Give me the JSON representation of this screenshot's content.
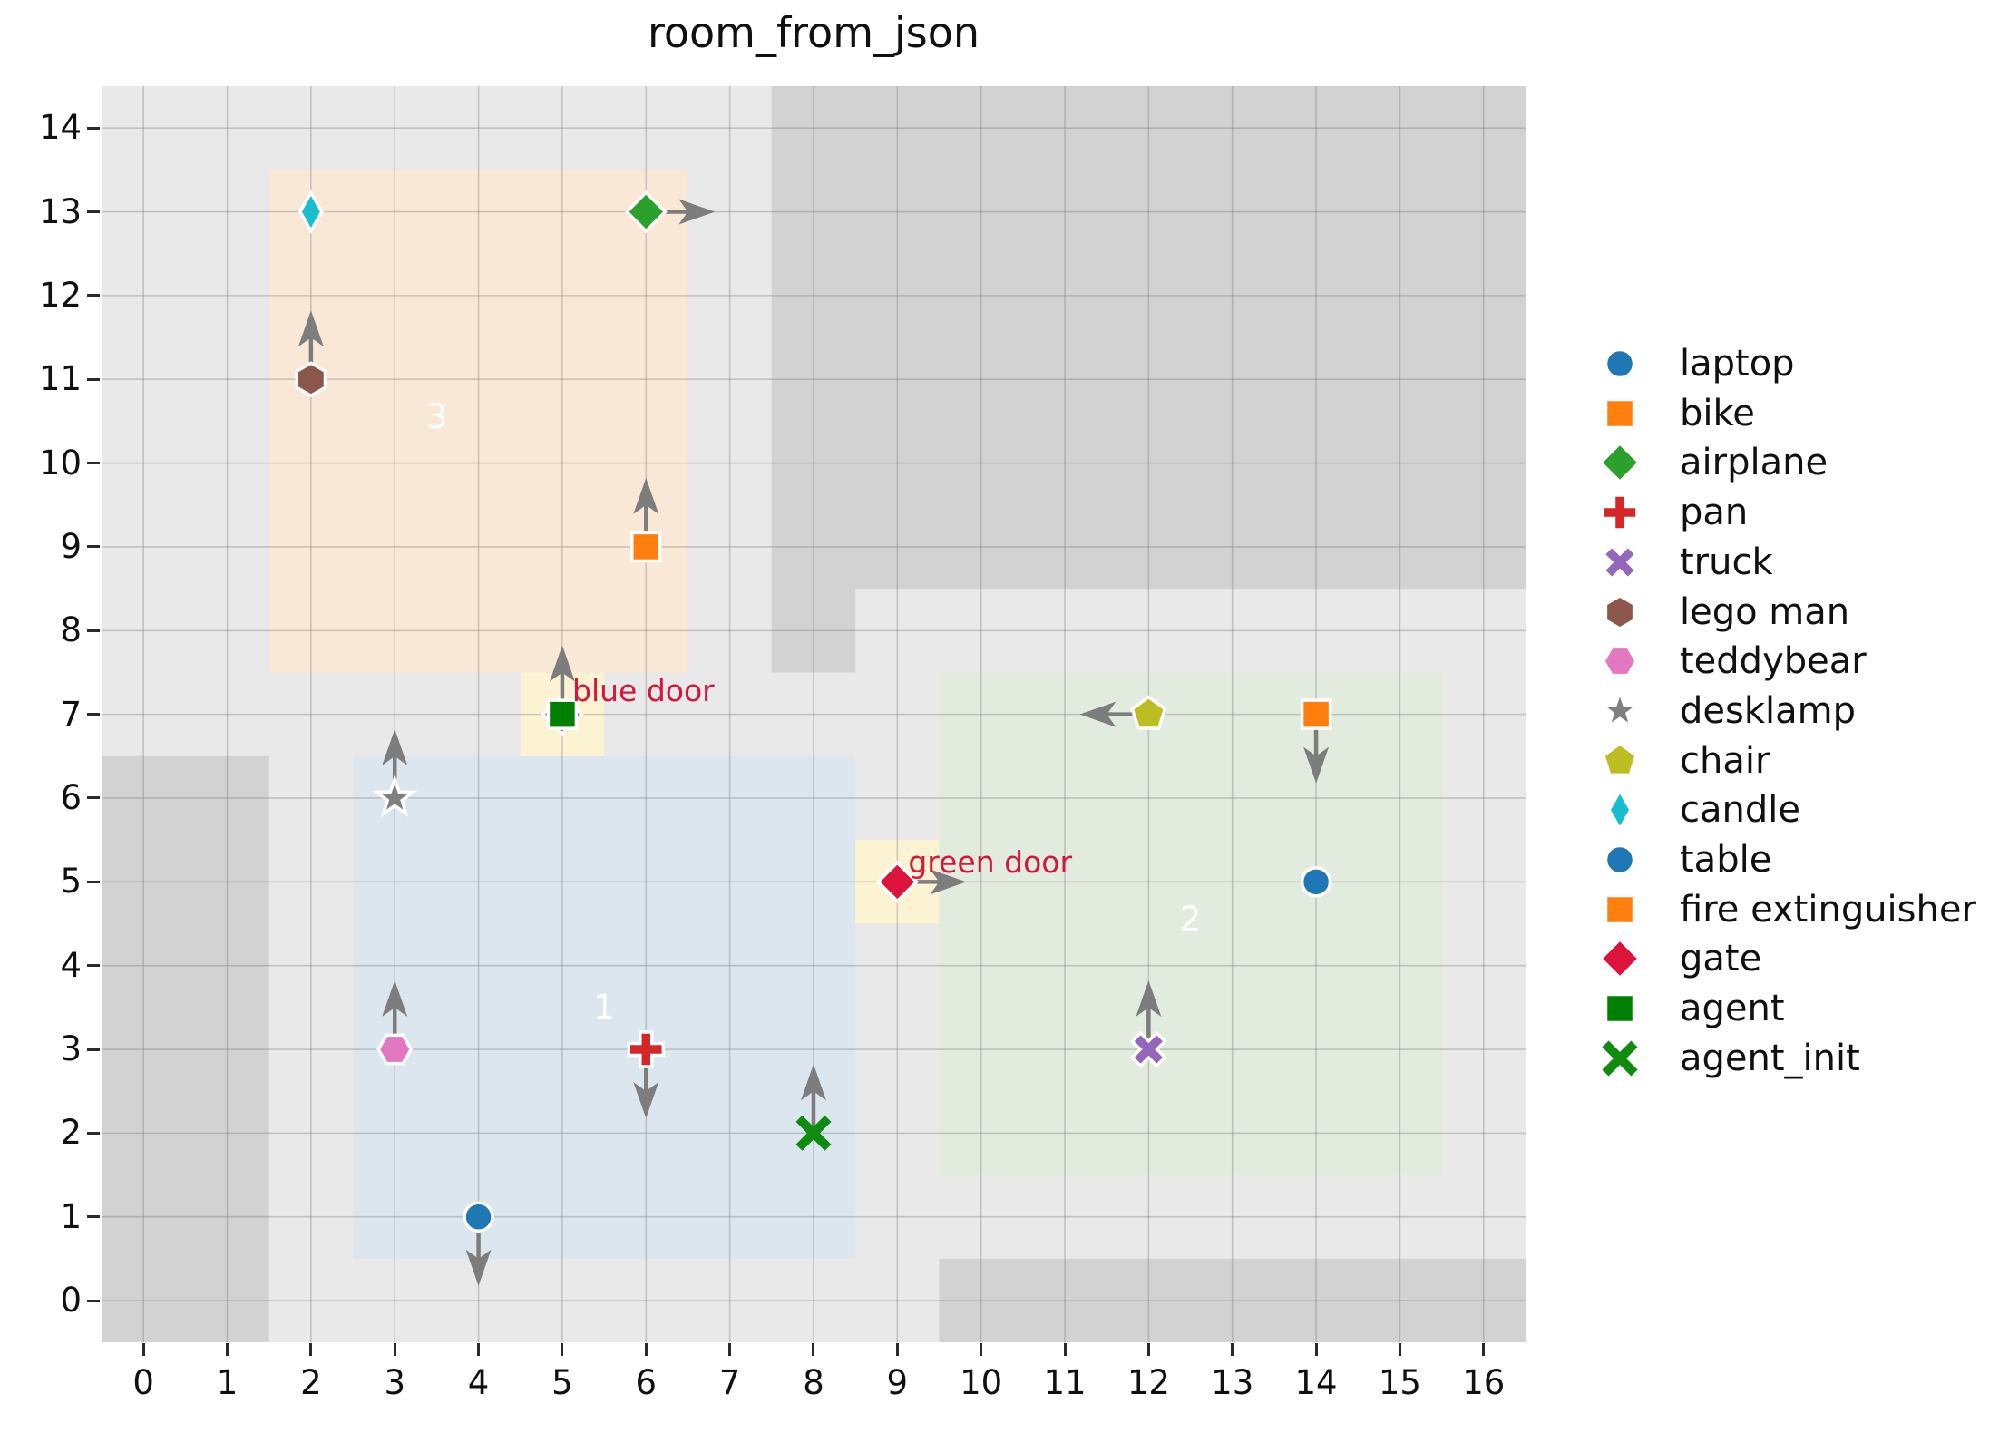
{
  "title": "room_from_json",
  "colors": {
    "plot_bg": "#e9e9e9",
    "wall": "#d2d2d2",
    "grid": "rgba(120,120,120,0.35)",
    "door_fill": "#fcf3d3",
    "door_text": "#d5173e",
    "room_label_text": "#ffffff",
    "arrow": "#7d7d7d",
    "tick_text": "#101010",
    "title_text": "#101010"
  },
  "chart_data": {
    "type": "scatter",
    "title": "room_from_json",
    "xlabel": "",
    "ylabel": "",
    "xlim": [
      -0.5,
      16.5
    ],
    "ylim": [
      -0.5,
      14.5
    ],
    "x_ticks": [
      0,
      1,
      2,
      3,
      4,
      5,
      6,
      7,
      8,
      9,
      10,
      11,
      12,
      13,
      14,
      15,
      16
    ],
    "y_ticks": [
      0,
      1,
      2,
      3,
      4,
      5,
      6,
      7,
      8,
      9,
      10,
      11,
      12,
      13,
      14
    ],
    "grid": true,
    "legend_position": "right-outside",
    "walls": [
      {
        "name": "wall-left",
        "x0": -0.5,
        "y0": -0.5,
        "x1": 1.5,
        "y1": 6.5
      },
      {
        "name": "wall-top-right",
        "x0": 7.5,
        "y0": 8.5,
        "x1": 16.5,
        "y1": 14.5
      },
      {
        "name": "wall-top-right-tab",
        "x0": 7.5,
        "y0": 7.5,
        "x1": 8.5,
        "y1": 8.5
      },
      {
        "name": "wall-bottom-right",
        "x0": 9.5,
        "y0": -0.5,
        "x1": 16.5,
        "y1": 0.5
      }
    ],
    "rooms": [
      {
        "label": "1",
        "fill": "#dce6ef",
        "x0": 2.5,
        "y0": 0.5,
        "x1": 8.5,
        "y1": 6.5,
        "label_x": 5.5,
        "label_y": 3.5
      },
      {
        "label": "2",
        "fill": "#e2ecde",
        "x0": 9.5,
        "y0": 1.5,
        "x1": 15.5,
        "y1": 7.5,
        "label_x": 12.5,
        "label_y": 4.55
      },
      {
        "label": "3",
        "fill": "#fae8d6",
        "x0": 1.5,
        "y0": 7.5,
        "x1": 6.5,
        "y1": 13.5,
        "label_x": 3.5,
        "label_y": 10.55
      }
    ],
    "doors": [
      {
        "label": "blue door",
        "cell_x0": 4.5,
        "cell_y0": 6.5,
        "cell_x1": 5.5,
        "cell_y1": 7.5,
        "label_x": 5.12,
        "label_y": 7.28
      },
      {
        "label": "green door",
        "cell_x0": 8.5,
        "cell_y0": 4.5,
        "cell_x1": 9.5,
        "cell_y1": 5.5,
        "label_x": 9.13,
        "label_y": 5.23
      }
    ],
    "objects": [
      {
        "name": "candle",
        "x": 2,
        "y": 13,
        "marker": "thin_diamond",
        "color": "#17becf",
        "arrow": null
      },
      {
        "name": "airplane",
        "x": 6,
        "y": 13,
        "marker": "diamond",
        "color": "#2ca02c",
        "arrow": "right"
      },
      {
        "name": "lego man",
        "x": 2,
        "y": 11,
        "marker": "hexagon_v",
        "color": "#8c564b",
        "arrow": "up"
      },
      {
        "name": "bike",
        "x": 6,
        "y": 9,
        "marker": "square",
        "color": "#ff7f0e",
        "arrow": "up"
      },
      {
        "name": "gate-blue-door",
        "x": 5,
        "y": 7,
        "marker": "diamond",
        "color": "#dc143c",
        "arrow": null
      },
      {
        "name": "agent",
        "x": 5,
        "y": 7,
        "marker": "square",
        "color": "#008000",
        "arrow": "up"
      },
      {
        "name": "chair",
        "x": 12,
        "y": 7,
        "marker": "pentagon",
        "color": "#bcbd22",
        "arrow": "left"
      },
      {
        "name": "fire extinguisher",
        "x": 14,
        "y": 7,
        "marker": "square",
        "color": "#ff7f0e",
        "arrow": "down"
      },
      {
        "name": "desklamp",
        "x": 3,
        "y": 6,
        "marker": "star",
        "color": "#7f7f7f",
        "arrow": "up"
      },
      {
        "name": "gate-green-door",
        "x": 9,
        "y": 5,
        "marker": "diamond",
        "color": "#dc143c",
        "arrow": "right"
      },
      {
        "name": "table",
        "x": 14,
        "y": 5,
        "marker": "circle",
        "color": "#1f77b4",
        "arrow": null
      },
      {
        "name": "teddybear",
        "x": 3,
        "y": 3,
        "marker": "hexagon_h",
        "color": "#e377c2",
        "arrow": "up"
      },
      {
        "name": "pan",
        "x": 6,
        "y": 3,
        "marker": "plus",
        "color": "#d62728",
        "arrow": "down"
      },
      {
        "name": "truck",
        "x": 12,
        "y": 3,
        "marker": "x_filled",
        "color": "#9467bd",
        "arrow": "up"
      },
      {
        "name": "agent_init",
        "x": 8,
        "y": 2,
        "marker": "x_thin",
        "color": "#0f8c0f",
        "arrow": "up"
      },
      {
        "name": "laptop",
        "x": 4,
        "y": 1,
        "marker": "circle",
        "color": "#1f77b4",
        "arrow": "down"
      }
    ]
  },
  "legend": {
    "items": [
      {
        "label": "laptop",
        "marker": "circle",
        "color": "#1f77b4"
      },
      {
        "label": "bike",
        "marker": "square",
        "color": "#ff7f0e"
      },
      {
        "label": "airplane",
        "marker": "diamond",
        "color": "#2ca02c"
      },
      {
        "label": "pan",
        "marker": "plus",
        "color": "#d62728"
      },
      {
        "label": "truck",
        "marker": "x_filled",
        "color": "#9467bd"
      },
      {
        "label": "lego man",
        "marker": "hexagon_v",
        "color": "#8c564b"
      },
      {
        "label": "teddybear",
        "marker": "hexagon_h",
        "color": "#e377c2"
      },
      {
        "label": "desklamp",
        "marker": "star",
        "color": "#7f7f7f"
      },
      {
        "label": "chair",
        "marker": "pentagon",
        "color": "#bcbd22"
      },
      {
        "label": "candle",
        "marker": "thin_diamond",
        "color": "#17becf"
      },
      {
        "label": "table",
        "marker": "circle",
        "color": "#1f77b4"
      },
      {
        "label": "fire extinguisher",
        "marker": "square",
        "color": "#ff7f0e"
      },
      {
        "label": "gate",
        "marker": "diamond",
        "color": "#dc143c"
      },
      {
        "label": "agent",
        "marker": "square",
        "color": "#008000"
      },
      {
        "label": "agent_init",
        "marker": "x_thin",
        "color": "#0f8c0f"
      }
    ]
  }
}
